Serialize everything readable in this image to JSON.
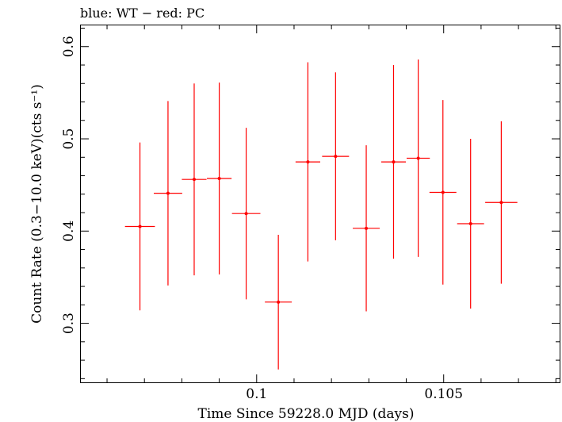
{
  "chart_data": {
    "type": "scatter",
    "title": "blue: WT − red: PC",
    "xlabel": "Time Since 59228.0 MJD (days)",
    "ylabel": "Count Rate (0.3−10.0 keV)(cts s⁻¹)",
    "xlim": [
      0.0953,
      0.1081
    ],
    "ylim": [
      0.236,
      0.623
    ],
    "x_ticks": [
      {
        "value": 0.1,
        "label": "0.1"
      },
      {
        "value": 0.105,
        "label": "0.105"
      }
    ],
    "y_ticks": [
      {
        "value": 0.3,
        "label": "0.3"
      },
      {
        "value": 0.4,
        "label": "0.4"
      },
      {
        "value": 0.5,
        "label": "0.5"
      },
      {
        "value": 0.6,
        "label": "0.6"
      }
    ],
    "grid": false,
    "series": [
      {
        "color": "#ff0000",
        "points": [
          {
            "x": 0.09688,
            "xerr": 0.0004,
            "y": 0.405,
            "yerr": 0.091
          },
          {
            "x": 0.09763,
            "xerr": 0.00038,
            "y": 0.441,
            "yerr": 0.1
          },
          {
            "x": 0.09833,
            "xerr": 0.00033,
            "y": 0.456,
            "yerr": 0.104
          },
          {
            "x": 0.099,
            "xerr": 0.00033,
            "y": 0.457,
            "yerr": 0.104
          },
          {
            "x": 0.09972,
            "xerr": 0.00038,
            "y": 0.419,
            "yerr": 0.093
          },
          {
            "x": 0.10058,
            "xerr": 0.00036,
            "y": 0.323,
            "yerr": 0.073
          },
          {
            "x": 0.10137,
            "xerr": 0.00033,
            "y": 0.475,
            "yerr": 0.108
          },
          {
            "x": 0.10211,
            "xerr": 0.00036,
            "y": 0.481,
            "yerr": 0.091
          },
          {
            "x": 0.10293,
            "xerr": 0.00036,
            "y": 0.403,
            "yerr": 0.09
          },
          {
            "x": 0.10366,
            "xerr": 0.00033,
            "y": 0.475,
            "yerr": 0.105
          },
          {
            "x": 0.10432,
            "xerr": 0.00031,
            "y": 0.479,
            "yerr": 0.107
          },
          {
            "x": 0.10498,
            "xerr": 0.00036,
            "y": 0.442,
            "yerr": 0.1
          },
          {
            "x": 0.10572,
            "xerr": 0.00036,
            "y": 0.408,
            "yerr": 0.092
          },
          {
            "x": 0.10654,
            "xerr": 0.00043,
            "y": 0.431,
            "yerr": 0.088
          }
        ]
      }
    ]
  }
}
